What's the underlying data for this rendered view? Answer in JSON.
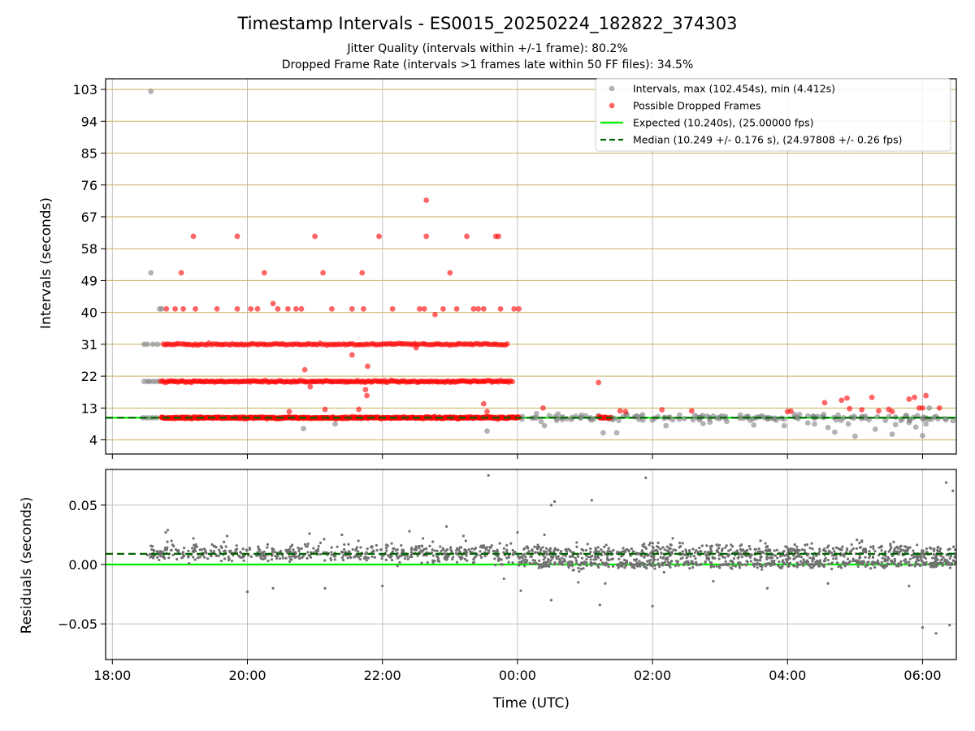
{
  "title": "Timestamp Intervals - ES0015_20250224_182822_374303",
  "subtitle_1": "Jitter Quality (intervals within +/-1 frame): 80.2%",
  "subtitle_2": "Dropped Frame Rate (intervals >1 frames late within 50 FF files): 34.5%",
  "colors": {
    "intervals": "#808080",
    "dropped": "#ff0000",
    "expected": "#00ee00",
    "median": "#006400",
    "hgrid_top": "#c8b060",
    "grid": "#c0c0c0"
  },
  "chart_data": [
    {
      "type": "scatter",
      "panel": "intervals",
      "ylabel": "Intervals (seconds)",
      "xlabel": "",
      "x_unit": "hours since 18:00 (axis labels as HH:MM)",
      "xlim": [
        17.9,
        30.5
      ],
      "ylim": [
        0,
        106
      ],
      "yticks": [
        4,
        13,
        22,
        31,
        40,
        49,
        58,
        67,
        76,
        85,
        94,
        103
      ],
      "xticks": [
        "18:00",
        "20:00",
        "22:00",
        "00:00",
        "02:00",
        "04:00",
        "06:00"
      ],
      "grid": true,
      "legend_position": "top-right",
      "legend": [
        {
          "label": "Intervals, max (102.454s), min (4.412s)",
          "kind": "dot",
          "color": "#808080"
        },
        {
          "label": "Possible Dropped Frames",
          "kind": "dot",
          "color": "#ff0000"
        },
        {
          "label": "Expected (10.240s), (25.00000 fps)",
          "kind": "line",
          "color": "#00ee00"
        },
        {
          "label": "Median (10.249 +/- 0.176 s), (24.97808 +/- 0.26 fps)",
          "kind": "dashed",
          "color": "#006400"
        }
      ],
      "reference_lines": {
        "expected": 10.24,
        "median": 10.249
      },
      "series": [
        {
          "name": "Intervals, max (102.454s), min (4.412s)",
          "points": [
            [
              18.47,
              31.0
            ],
            [
              18.52,
              31.0
            ],
            [
              18.47,
              20.5
            ],
            [
              18.52,
              20.5
            ],
            [
              18.55,
              20.5
            ],
            [
              18.57,
              102.45
            ],
            [
              18.57,
              51.2
            ],
            [
              18.7,
              41.0
            ],
            [
              18.73,
              41.0
            ],
            [
              18.6,
              31.0
            ],
            [
              18.67,
              31.0
            ],
            [
              18.6,
              20.5
            ],
            [
              18.64,
              20.5
            ],
            [
              18.69,
              20.5
            ],
            [
              18.45,
              10.24
            ],
            [
              20.83,
              7.2
            ],
            [
              21.3,
              8.5
            ],
            [
              23.55,
              6.5
            ],
            [
              18.5,
              10.24
            ],
            [
              18.55,
              10.24
            ],
            [
              18.6,
              10.24
            ],
            [
              18.65,
              10.24
            ],
            [
              24.4,
              8.0
            ],
            [
              24.58,
              9.5
            ],
            [
              24.6,
              11.3
            ],
            [
              24.8,
              9.8
            ],
            [
              24.95,
              11.0
            ],
            [
              25.1,
              9.6
            ],
            [
              25.2,
              10.8
            ],
            [
              25.35,
              10.0
            ],
            [
              25.5,
              9.5
            ],
            [
              25.62,
              11.2
            ],
            [
              25.8,
              9.8
            ],
            [
              26.0,
              9.6
            ],
            [
              26.2,
              8.0
            ],
            [
              26.3,
              9.7
            ],
            [
              26.4,
              11.0
            ],
            [
              26.6,
              9.7
            ],
            [
              26.75,
              8.6
            ],
            [
              26.9,
              10.7
            ],
            [
              27.1,
              9.2
            ],
            [
              27.3,
              11.0
            ],
            [
              27.45,
              9.5
            ],
            [
              27.6,
              10.5
            ],
            [
              27.8,
              9.9
            ],
            [
              27.95,
              8.0
            ],
            [
              28.1,
              11.2
            ],
            [
              28.3,
              8.8
            ],
            [
              28.45,
              10.6
            ],
            [
              28.6,
              7.5
            ],
            [
              28.75,
              11.0
            ],
            [
              28.9,
              8.5
            ],
            [
              29.0,
              5.0
            ],
            [
              29.15,
              10.7
            ],
            [
              29.3,
              7.0
            ],
            [
              29.45,
              9.5
            ],
            [
              29.6,
              8.3
            ],
            [
              29.75,
              10.9
            ],
            [
              29.9,
              7.6
            ],
            [
              30.0,
              5.2
            ],
            [
              30.05,
              8.5
            ],
            [
              30.2,
              10.6
            ],
            [
              30.35,
              9.7
            ],
            [
              30.45,
              9.4
            ],
            [
              25.27,
              6.0
            ],
            [
              25.47,
              6.0
            ],
            [
              26.85,
              9.0
            ],
            [
              27.5,
              8.2
            ],
            [
              28.7,
              6.2
            ],
            [
              29.55,
              5.6
            ],
            [
              30.1,
              13.0
            ],
            [
              28.4,
              8.5
            ],
            [
              29.8,
              8.9
            ]
          ]
        },
        {
          "name": "Possible Dropped Frames",
          "points": [
            [
              19.02,
              51.2
            ],
            [
              18.8,
              41.0
            ],
            [
              18.93,
              41.0
            ],
            [
              19.05,
              41.0
            ],
            [
              19.23,
              41.0
            ],
            [
              19.55,
              41.0
            ],
            [
              19.85,
              41.0
            ],
            [
              20.05,
              41.0
            ],
            [
              20.15,
              41.0
            ],
            [
              20.45,
              41.0
            ],
            [
              20.6,
              41.0
            ],
            [
              20.72,
              41.0
            ],
            [
              20.8,
              41.0
            ],
            [
              21.25,
              41.0
            ],
            [
              21.55,
              41.0
            ],
            [
              21.72,
              41.0
            ],
            [
              22.15,
              41.0
            ],
            [
              22.55,
              41.0
            ],
            [
              22.62,
              41.0
            ],
            [
              22.9,
              41.0
            ],
            [
              23.1,
              41.0
            ],
            [
              23.35,
              41.0
            ],
            [
              23.42,
              41.0
            ],
            [
              23.5,
              41.0
            ],
            [
              23.75,
              41.0
            ],
            [
              23.95,
              41.0
            ],
            [
              24.02,
              41.0
            ],
            [
              19.2,
              61.5
            ],
            [
              19.85,
              61.5
            ],
            [
              21.0,
              61.5
            ],
            [
              21.95,
              61.5
            ],
            [
              22.65,
              61.5
            ],
            [
              23.25,
              61.5
            ],
            [
              23.68,
              61.5
            ],
            [
              23.72,
              61.5
            ],
            [
              22.65,
              71.7
            ],
            [
              20.25,
              51.2
            ],
            [
              21.12,
              51.2
            ],
            [
              21.7,
              51.2
            ],
            [
              23.0,
              51.2
            ],
            [
              20.38,
              42.5
            ],
            [
              22.78,
              39.4
            ],
            [
              22.5,
              30.0
            ],
            [
              21.55,
              28.0
            ],
            [
              20.85,
              23.8
            ],
            [
              20.93,
              19.0
            ],
            [
              21.75,
              18.2
            ],
            [
              21.77,
              16.5
            ],
            [
              21.78,
              24.8
            ],
            [
              21.15,
              12.6
            ],
            [
              21.65,
              12.6
            ],
            [
              23.5,
              14.2
            ],
            [
              20.62,
              12.0
            ],
            [
              23.55,
              12.0
            ],
            [
              24.38,
              13.0
            ],
            [
              25.2,
              20.2
            ],
            [
              25.52,
              12.2
            ],
            [
              25.6,
              12.0
            ],
            [
              26.14,
              12.5
            ],
            [
              26.58,
              12.2
            ],
            [
              28.0,
              12.0
            ],
            [
              28.05,
              12.1
            ],
            [
              28.55,
              14.5
            ],
            [
              28.8,
              15.2
            ],
            [
              28.88,
              15.8
            ],
            [
              28.92,
              12.8
            ],
            [
              29.1,
              12.5
            ],
            [
              29.25,
              16.0
            ],
            [
              29.35,
              12.2
            ],
            [
              29.5,
              12.6
            ],
            [
              29.55,
              12.0
            ],
            [
              29.8,
              15.5
            ],
            [
              29.88,
              16.0
            ],
            [
              29.95,
              13.0
            ],
            [
              30.0,
              13.0
            ],
            [
              30.05,
              16.5
            ],
            [
              30.25,
              13.0
            ]
          ],
          "bands": [
            {
              "y": 10.24,
              "x_from": 18.72,
              "x_to": 24.02,
              "count": 430
            },
            {
              "y": 20.5,
              "x_from": 18.72,
              "x_to": 23.92,
              "count": 210
            },
            {
              "y": 31.0,
              "x_from": 18.75,
              "x_to": 23.85,
              "count": 150
            },
            {
              "y": 10.24,
              "x_from": 25.2,
              "x_to": 25.38,
              "count": 12
            }
          ]
        }
      ]
    },
    {
      "type": "scatter",
      "panel": "residuals",
      "xlabel": "Time (UTC)",
      "ylabel": "Residuals (seconds)",
      "xlim": [
        17.9,
        30.5
      ],
      "ylim": [
        -0.08,
        0.08
      ],
      "yticks": [
        0.05,
        0.0,
        -0.05
      ],
      "ytick_labels": [
        "0.05",
        "0.00",
        "−0.05"
      ],
      "xticks": [
        "18:00",
        "20:00",
        "22:00",
        "00:00",
        "02:00",
        "04:00",
        "06:00"
      ],
      "grid": true,
      "reference_lines": {
        "expected": 0.0,
        "median": 0.009
      },
      "series": [
        {
          "name": "",
          "bands": [
            {
              "x_from": 18.5,
              "x_to": 30.5,
              "center": 0.0095,
              "spread": 0.006,
              "count": 1300
            },
            {
              "x_from": 24.0,
              "x_to": 30.5,
              "center": 0.0005,
              "spread": 0.003,
              "count": 500
            }
          ],
          "points": [
            [
              23.57,
              0.075
            ],
            [
              25.9,
              0.073
            ],
            [
              24.5,
              0.05
            ],
            [
              24.55,
              0.053
            ],
            [
              25.1,
              0.054
            ],
            [
              30.35,
              0.069
            ],
            [
              30.45,
              0.062
            ],
            [
              30.0,
              -0.053
            ],
            [
              30.2,
              -0.058
            ],
            [
              30.4,
              -0.051
            ],
            [
              24.5,
              -0.03
            ],
            [
              25.22,
              -0.034
            ],
            [
              26.0,
              -0.035
            ],
            [
              20.0,
              -0.023
            ],
            [
              18.82,
              0.029
            ],
            [
              18.79,
              0.027
            ],
            [
              20.92,
              0.026
            ],
            [
              22.95,
              0.032
            ],
            [
              24.0,
              0.027
            ],
            [
              24.05,
              -0.022
            ],
            [
              21.15,
              -0.02
            ],
            [
              22.0,
              -0.018
            ],
            [
              20.38,
              -0.02
            ],
            [
              23.2,
              0.024
            ],
            [
              24.4,
              0.025
            ],
            [
              25.3,
              -0.016
            ],
            [
              26.9,
              -0.014
            ],
            [
              27.7,
              -0.02
            ],
            [
              28.6,
              -0.016
            ],
            [
              29.1,
              0.02
            ],
            [
              23.8,
              -0.012
            ],
            [
              22.4,
              0.028
            ],
            [
              22.6,
              0.022
            ],
            [
              19.7,
              0.024
            ],
            [
              19.2,
              0.022
            ],
            [
              21.4,
              0.025
            ],
            [
              24.9,
              -0.015
            ],
            [
              26.3,
              0.022
            ],
            [
              27.6,
              0.02
            ],
            [
              29.8,
              -0.018
            ]
          ]
        }
      ]
    }
  ]
}
